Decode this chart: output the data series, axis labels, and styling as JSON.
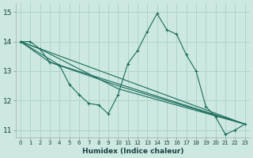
{
  "xlabel": "Humidex (Indice chaleur)",
  "xlim": [
    -0.5,
    23.5
  ],
  "ylim": [
    10.75,
    15.3
  ],
  "yticks": [
    11,
    12,
    13,
    14,
    15
  ],
  "xticks": [
    0,
    1,
    2,
    3,
    4,
    5,
    6,
    7,
    8,
    9,
    10,
    11,
    12,
    13,
    14,
    15,
    16,
    17,
    18,
    19,
    20,
    21,
    22,
    23
  ],
  "bg_color": "#cce8e0",
  "grid_color": "#b0d4cc",
  "line_color": "#1a6b5a",
  "main_line": [
    [
      0,
      14.0
    ],
    [
      1,
      14.0
    ],
    [
      2,
      13.75
    ],
    [
      3,
      13.3
    ],
    [
      4,
      13.2
    ],
    [
      5,
      12.55
    ],
    [
      6,
      12.2
    ],
    [
      7,
      11.9
    ],
    [
      8,
      11.85
    ],
    [
      9,
      11.55
    ],
    [
      10,
      12.2
    ],
    [
      11,
      13.25
    ],
    [
      12,
      13.7
    ],
    [
      13,
      14.35
    ],
    [
      14,
      14.95
    ],
    [
      15,
      14.4
    ],
    [
      16,
      14.25
    ],
    [
      17,
      13.55
    ],
    [
      18,
      13.0
    ],
    [
      19,
      11.8
    ],
    [
      20,
      11.45
    ],
    [
      21,
      10.85
    ],
    [
      22,
      11.0
    ],
    [
      23,
      11.2
    ]
  ],
  "straight_lines": [
    [
      [
        0,
        14.0
      ],
      [
        23,
        11.2
      ]
    ],
    [
      [
        0,
        14.0
      ],
      [
        4,
        13.2
      ],
      [
        23,
        11.2
      ]
    ],
    [
      [
        0,
        14.0
      ],
      [
        3,
        13.3
      ],
      [
        10,
        12.5
      ],
      [
        23,
        11.2
      ]
    ],
    [
      [
        0,
        14.0
      ],
      [
        2,
        13.75
      ],
      [
        10,
        12.4
      ],
      [
        23,
        11.2
      ]
    ]
  ]
}
